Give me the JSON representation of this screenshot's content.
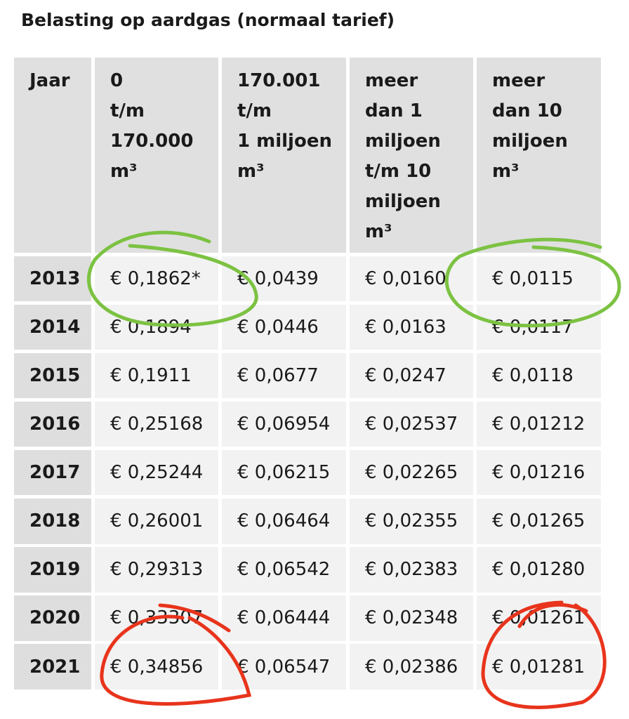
{
  "title": "Belasting op aardgas (normaal tarief)",
  "table": {
    "header": [
      [
        "Jaar"
      ],
      [
        "0",
        "t/m",
        "170.000",
        "m³"
      ],
      [
        "170.001",
        "t/m",
        "1 miljoen",
        "m³"
      ],
      [
        "meer",
        "dan 1",
        "miljoen",
        "t/m 10",
        "miljoen",
        "m³"
      ],
      [
        "meer",
        "dan 10",
        "miljoen",
        "m³"
      ]
    ],
    "rows": [
      [
        "2013",
        "€ 0,1862*",
        "€ 0,0439",
        "€ 0,0160",
        "€ 0,0115"
      ],
      [
        "2014",
        "€ 0,1894",
        "€ 0,0446",
        "€ 0,0163",
        "€ 0,0117"
      ],
      [
        "2015",
        "€ 0,1911",
        "€ 0,0677",
        "€ 0,0247",
        "€ 0,0118"
      ],
      [
        "2016",
        "€ 0,25168",
        "€ 0,06954",
        "€ 0,02537",
        "€ 0,01212"
      ],
      [
        "2017",
        "€ 0,25244",
        "€ 0,06215",
        "€ 0,02265",
        "€ 0,01216"
      ],
      [
        "2018",
        "€ 0,26001",
        "€ 0,06464",
        "€ 0,02355",
        "€ 0,01265"
      ],
      [
        "2019",
        "€ 0,29313",
        "€ 0,06542",
        "€ 0,02383",
        "€ 0,01280"
      ],
      [
        "2020",
        "€ 0,33307",
        "€ 0,06444",
        "€ 0,02348",
        "€ 0,01261"
      ],
      [
        "2021",
        "€ 0,34856",
        "€ 0,06547",
        "€ 0,02386",
        "€ 0,01281"
      ]
    ]
  }
}
